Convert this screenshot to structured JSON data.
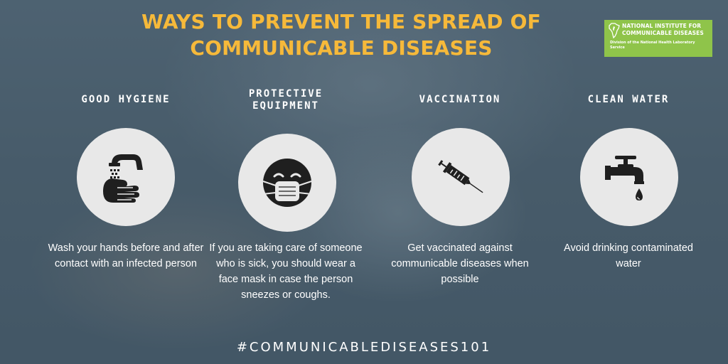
{
  "title": {
    "line1": "WAYS TO PREVENT THE SPREAD OF",
    "line2": "COMMUNICABLE DISEASES"
  },
  "logo": {
    "line1": "NATIONAL INSTITUTE FOR",
    "line2": "COMMUNICABLE DISEASES",
    "subtitle": "Division of the National Health Laboratory Service",
    "color": "#8fc44a"
  },
  "tips": [
    {
      "heading_line1": "GOOD HYGIENE",
      "heading_line2": "",
      "icon": "handwashing-icon",
      "description": "Wash your hands before and after contact with an infected person"
    },
    {
      "heading_line1": "PROTECTIVE",
      "heading_line2": "EQUIPMENT",
      "icon": "face-mask-icon",
      "description": "If you are taking care of someone who is sick, you should wear a face mask in case the person sneezes or coughs."
    },
    {
      "heading_line1": "VACCINATION",
      "heading_line2": "",
      "icon": "syringe-icon",
      "description": "Get vaccinated against communicable diseases when possible"
    },
    {
      "heading_line1": "CLEAN WATER",
      "heading_line2": "",
      "icon": "water-tap-icon",
      "description": "Avoid drinking contaminated water"
    }
  ],
  "hashtag": "#COMMUNICABLEDISEASES101",
  "colors": {
    "title": "#f6b93a",
    "circle": "#e8e8e8",
    "icon": "#1f1f1f",
    "background": "#546877"
  }
}
